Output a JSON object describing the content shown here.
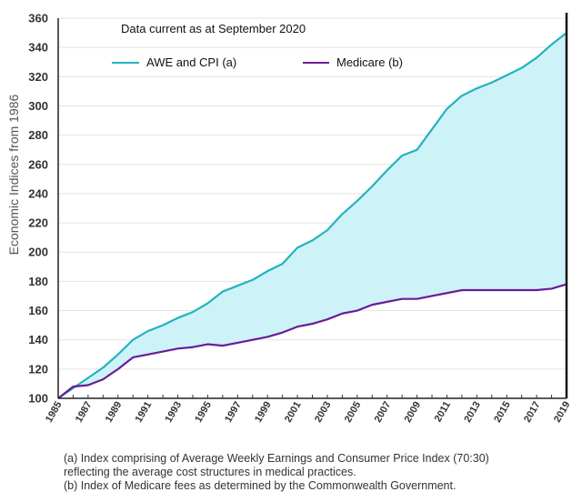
{
  "chart_data": {
    "type": "line",
    "title": "",
    "annotation": "Data current as at September 2020",
    "xlabel": "",
    "ylabel": "Economic Indices from 1986",
    "ylim": [
      100,
      360
    ],
    "yticks": [
      100,
      120,
      140,
      160,
      180,
      200,
      220,
      240,
      260,
      280,
      300,
      320,
      340,
      360
    ],
    "xlim": [
      1985,
      2019
    ],
    "xticks": [
      1985,
      1987,
      1989,
      1991,
      1993,
      1995,
      1997,
      1999,
      2001,
      2003,
      2005,
      2007,
      2009,
      2011,
      2013,
      2015,
      2017,
      2019
    ],
    "fill_between": {
      "color": "#cdf3f9"
    },
    "series": [
      {
        "name": "AWE and CPI (a)",
        "color": "#23b3bf",
        "x": [
          1985,
          1986,
          1987,
          1988,
          1989,
          1990,
          1991,
          1992,
          1993,
          1994,
          1995,
          1996,
          1997,
          1998,
          1999,
          2000,
          2001,
          2002,
          2003,
          2004,
          2005,
          2006,
          2007,
          2008,
          2009,
          2010,
          2011,
          2012,
          2013,
          2014,
          2015,
          2016,
          2017,
          2018,
          2019
        ],
        "values": [
          100,
          107,
          114,
          121,
          130,
          140,
          146,
          150,
          155,
          159,
          165,
          173,
          177,
          181,
          187,
          192,
          203,
          208,
          215,
          226,
          235,
          245,
          256,
          266,
          270,
          284,
          298,
          307,
          312,
          316,
          321,
          326,
          333,
          342,
          350
        ]
      },
      {
        "name": "Medicare (b)",
        "color": "#6a1b9a",
        "x": [
          1985,
          1986,
          1987,
          1988,
          1989,
          1990,
          1991,
          1992,
          1993,
          1994,
          1995,
          1996,
          1997,
          1998,
          1999,
          2000,
          2001,
          2002,
          2003,
          2004,
          2005,
          2006,
          2007,
          2008,
          2009,
          2010,
          2011,
          2012,
          2013,
          2014,
          2015,
          2016,
          2017,
          2018,
          2019
        ],
        "values": [
          100,
          108,
          109,
          113,
          120,
          128,
          130,
          132,
          134,
          135,
          137,
          136,
          138,
          140,
          142,
          145,
          149,
          151,
          154,
          158,
          160,
          164,
          166,
          168,
          168,
          170,
          172,
          174,
          174,
          174,
          174,
          174,
          174,
          175,
          178
        ]
      }
    ]
  },
  "notes": [
    "(a) Index comprising of Average Weekly Earnings and Consumer Price Index (70:30)",
    "reflecting the average cost structures in medical practices.",
    "(b) Index of Medicare fees as determined by the Commonwealth Government."
  ]
}
